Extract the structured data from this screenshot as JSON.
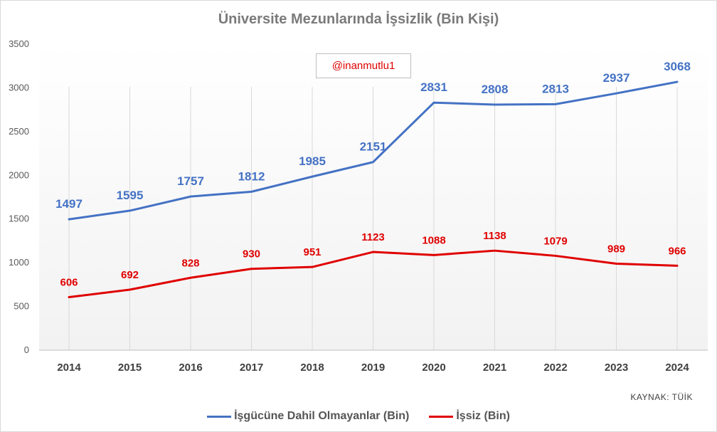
{
  "title": "Üniversite Mezunlarında İşsizlik (Bin Kişi)",
  "watermark": "@inanmutlu1",
  "source": "KAYNAK: TÜİK",
  "colors": {
    "series1": "#4472c4",
    "series2": "#e00000",
    "grid": "#d9d9d9"
  },
  "chart_data": {
    "type": "line",
    "title": "Üniversite Mezunlarında İşsizlik (Bin Kişi)",
    "xlabel": "",
    "ylabel": "",
    "x": [
      "2014",
      "2015",
      "2016",
      "2017",
      "2018",
      "2019",
      "2020",
      "2021",
      "2022",
      "2023",
      "2024"
    ],
    "ylim": [
      0,
      3500
    ],
    "yticks": [
      0,
      500,
      1000,
      1500,
      2000,
      2500,
      3000,
      3500
    ],
    "grid": "vertical",
    "legend": "bottom",
    "series": [
      {
        "name": "İşgücüne Dahil Olmayanlar (Bin)",
        "color": "#4472c4",
        "values": [
          1497,
          1595,
          1757,
          1812,
          1985,
          2151,
          2831,
          2808,
          2813,
          2937,
          3068
        ]
      },
      {
        "name": "İşsiz (Bin)",
        "color": "#e00000",
        "values": [
          606,
          692,
          828,
          930,
          951,
          1123,
          1088,
          1138,
          1079,
          989,
          966
        ]
      }
    ]
  }
}
